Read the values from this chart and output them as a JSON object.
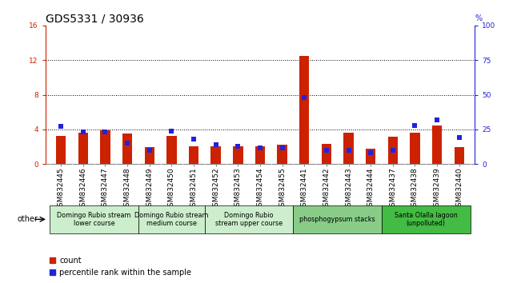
{
  "title": "GDS5331 / 30936",
  "samples": [
    "GSM832445",
    "GSM832446",
    "GSM832447",
    "GSM832448",
    "GSM832449",
    "GSM832450",
    "GSM832451",
    "GSM832452",
    "GSM832453",
    "GSM832454",
    "GSM832455",
    "GSM832441",
    "GSM832442",
    "GSM832443",
    "GSM832444",
    "GSM832437",
    "GSM832438",
    "GSM832439",
    "GSM832440"
  ],
  "count": [
    3.3,
    3.6,
    3.9,
    3.5,
    2.0,
    3.3,
    2.1,
    2.1,
    2.1,
    2.1,
    2.2,
    12.5,
    2.3,
    3.6,
    1.8,
    3.2,
    3.6,
    4.5,
    2.0
  ],
  "percentile": [
    27,
    23,
    23,
    15,
    10,
    24,
    18,
    14,
    13,
    12,
    12,
    48,
    10,
    10,
    8,
    10,
    28,
    32,
    19
  ],
  "groups": [
    {
      "label": "Domingo Rubio stream\nlower course",
      "start": 0,
      "end": 3,
      "color": "#cceecc"
    },
    {
      "label": "Domingo Rubio stream\nmedium course",
      "start": 4,
      "end": 6,
      "color": "#cceecc"
    },
    {
      "label": "Domingo Rubio\nstream upper course",
      "start": 7,
      "end": 10,
      "color": "#cceecc"
    },
    {
      "label": "phosphogypsum stacks",
      "start": 11,
      "end": 14,
      "color": "#88cc88"
    },
    {
      "label": "Santa Olalla lagoon\n(unpolluted)",
      "start": 15,
      "end": 18,
      "color": "#44bb44"
    }
  ],
  "ylim_left": [
    0,
    16
  ],
  "ylim_right": [
    0,
    100
  ],
  "yticks_left": [
    0,
    4,
    8,
    12,
    16
  ],
  "yticks_right": [
    0,
    25,
    50,
    75,
    100
  ],
  "bar_color_red": "#cc2200",
  "bar_color_blue": "#2222dd",
  "title_fontsize": 10,
  "tick_fontsize": 6.5,
  "bar_width": 0.45,
  "blue_marker_size": 4.5,
  "grid_lines": [
    4,
    8,
    12
  ]
}
